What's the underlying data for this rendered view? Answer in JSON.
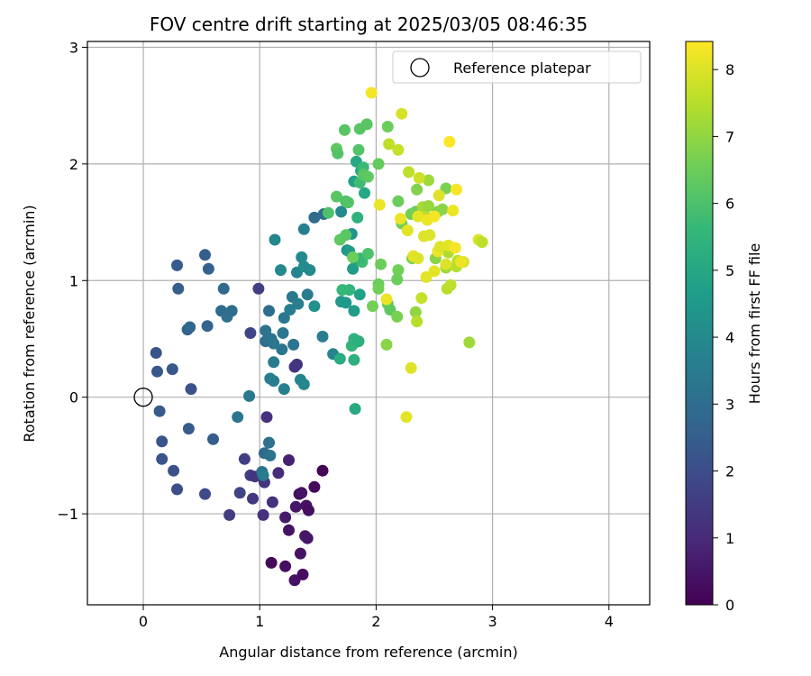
{
  "chart_data": {
    "type": "scatter",
    "title": "FOV centre drift starting at 2025/03/05 08:46:35",
    "xlabel": "Angular distance from reference (arcmin)",
    "ylabel": "Rotation from reference (arcmin)",
    "xlim": [
      -0.48,
      4.35
    ],
    "ylim": [
      -1.78,
      3.05
    ],
    "xticks": [
      0,
      1,
      2,
      3,
      4
    ],
    "yticks": [
      -1,
      0,
      1,
      2,
      3
    ],
    "grid": true,
    "legend": {
      "position": "top-right",
      "entries": [
        "Reference platepar"
      ]
    },
    "reference_point": {
      "x": 0,
      "y": 0,
      "label": "Reference platepar"
    },
    "colorbar": {
      "label": "Hours from first FF file",
      "range": [
        0,
        8.42
      ],
      "ticks": [
        0,
        1,
        2,
        3,
        4,
        5,
        6,
        7,
        8
      ],
      "colormap": [
        "#440154",
        "#482878",
        "#3e4989",
        "#31688e",
        "#26828e",
        "#1f9e89",
        "#35b779",
        "#6ece58",
        "#b5de2b",
        "#fde725"
      ]
    },
    "points": [
      {
        "x": 1.1,
        "y": -1.42,
        "c": 0.2
      },
      {
        "x": 1.22,
        "y": -1.45,
        "c": 0.3
      },
      {
        "x": 1.3,
        "y": -1.57,
        "c": 0.4
      },
      {
        "x": 1.37,
        "y": -1.52,
        "c": 0.3
      },
      {
        "x": 1.35,
        "y": -1.34,
        "c": 0.4
      },
      {
        "x": 1.39,
        "y": -1.19,
        "c": 0.5
      },
      {
        "x": 1.41,
        "y": -1.21,
        "c": 0.5
      },
      {
        "x": 1.25,
        "y": -1.14,
        "c": 0.4
      },
      {
        "x": 1.22,
        "y": -1.03,
        "c": 0.6
      },
      {
        "x": 1.31,
        "y": -0.94,
        "c": 0.5
      },
      {
        "x": 1.4,
        "y": -0.93,
        "c": 0.4
      },
      {
        "x": 1.42,
        "y": -0.97,
        "c": 0.3
      },
      {
        "x": 1.34,
        "y": -0.83,
        "c": 0.3
      },
      {
        "x": 1.36,
        "y": -0.82,
        "c": 0.4
      },
      {
        "x": 1.47,
        "y": -0.77,
        "c": 0.2
      },
      {
        "x": 1.54,
        "y": -0.63,
        "c": 0.1
      },
      {
        "x": 1.25,
        "y": -0.54,
        "c": 0.8
      },
      {
        "x": 1.16,
        "y": -0.65,
        "c": 1.0
      },
      {
        "x": 1.11,
        "y": -0.9,
        "c": 1.2
      },
      {
        "x": 1.04,
        "y": -0.73,
        "c": 1.3
      },
      {
        "x": 1.03,
        "y": -1.01,
        "c": 1.2
      },
      {
        "x": 0.94,
        "y": -0.87,
        "c": 1.4
      },
      {
        "x": 0.92,
        "y": -0.67,
        "c": 1.5
      },
      {
        "x": 0.96,
        "y": -0.68,
        "c": 1.3
      },
      {
        "x": 0.87,
        "y": -0.53,
        "c": 1.6
      },
      {
        "x": 0.83,
        "y": -0.82,
        "c": 1.7
      },
      {
        "x": 0.74,
        "y": -1.01,
        "c": 1.5
      },
      {
        "x": 0.53,
        "y": -0.83,
        "c": 1.9
      },
      {
        "x": 0.29,
        "y": -0.79,
        "c": 2.0
      },
      {
        "x": 0.26,
        "y": -0.63,
        "c": 2.1
      },
      {
        "x": 0.16,
        "y": -0.53,
        "c": 2.2
      },
      {
        "x": 0.16,
        "y": -0.38,
        "c": 2.2
      },
      {
        "x": 0.14,
        "y": -0.12,
        "c": 2.4
      },
      {
        "x": 0.12,
        "y": 0.22,
        "c": 2.3
      },
      {
        "x": 0.11,
        "y": 0.38,
        "c": 2.2
      },
      {
        "x": 0.25,
        "y": 0.24,
        "c": 2.3
      },
      {
        "x": 0.41,
        "y": 0.07,
        "c": 2.1
      },
      {
        "x": 0.39,
        "y": -0.27,
        "c": 2.4
      },
      {
        "x": 0.6,
        "y": -0.36,
        "c": 2.5
      },
      {
        "x": 1.06,
        "y": -0.17,
        "c": 1.2
      },
      {
        "x": 1.04,
        "y": -0.48,
        "c": 2.9
      },
      {
        "x": 1.08,
        "y": -0.39,
        "c": 3.1
      },
      {
        "x": 1.09,
        "y": -0.5,
        "c": 3.2
      },
      {
        "x": 1.02,
        "y": -0.64,
        "c": 3.3
      },
      {
        "x": 1.03,
        "y": -0.67,
        "c": 3.5
      },
      {
        "x": 0.81,
        "y": -0.17,
        "c": 3.3
      },
      {
        "x": 0.91,
        "y": 0.01,
        "c": 3.4
      },
      {
        "x": 0.92,
        "y": 0.55,
        "c": 1.8
      },
      {
        "x": 0.99,
        "y": 0.93,
        "c": 1.6
      },
      {
        "x": 0.38,
        "y": 0.58,
        "c": 2.6
      },
      {
        "x": 0.4,
        "y": 0.6,
        "c": 2.8
      },
      {
        "x": 0.55,
        "y": 0.61,
        "c": 2.7
      },
      {
        "x": 0.3,
        "y": 0.93,
        "c": 2.5
      },
      {
        "x": 0.29,
        "y": 1.13,
        "c": 2.4
      },
      {
        "x": 0.53,
        "y": 1.22,
        "c": 2.5
      },
      {
        "x": 0.56,
        "y": 1.1,
        "c": 2.6
      },
      {
        "x": 0.69,
        "y": 0.93,
        "c": 2.8
      },
      {
        "x": 0.67,
        "y": 0.74,
        "c": 3.0
      },
      {
        "x": 0.72,
        "y": 0.69,
        "c": 3.1
      },
      {
        "x": 0.76,
        "y": 0.74,
        "c": 3.0
      },
      {
        "x": 1.05,
        "y": 0.48,
        "c": 3.1
      },
      {
        "x": 1.08,
        "y": 0.74,
        "c": 3.0
      },
      {
        "x": 1.05,
        "y": 0.57,
        "c": 3.2
      },
      {
        "x": 1.1,
        "y": 0.5,
        "c": 3.2
      },
      {
        "x": 1.12,
        "y": 0.46,
        "c": 3.4
      },
      {
        "x": 1.12,
        "y": 0.3,
        "c": 3.5
      },
      {
        "x": 1.09,
        "y": 0.16,
        "c": 3.6
      },
      {
        "x": 1.12,
        "y": 0.14,
        "c": 3.6
      },
      {
        "x": 1.21,
        "y": 0.07,
        "c": 3.7
      },
      {
        "x": 1.19,
        "y": 0.41,
        "c": 3.3
      },
      {
        "x": 1.2,
        "y": 0.55,
        "c": 3.3
      },
      {
        "x": 1.21,
        "y": 0.68,
        "c": 3.4
      },
      {
        "x": 1.28,
        "y": 0.86,
        "c": 3.4
      },
      {
        "x": 1.26,
        "y": 0.75,
        "c": 3.6
      },
      {
        "x": 1.29,
        "y": 0.45,
        "c": 3.2
      },
      {
        "x": 1.3,
        "y": 0.26,
        "c": 1.3
      },
      {
        "x": 1.32,
        "y": 0.28,
        "c": 1.3
      },
      {
        "x": 1.35,
        "y": 0.15,
        "c": 3.8
      },
      {
        "x": 1.38,
        "y": 0.11,
        "c": 3.9
      },
      {
        "x": 1.18,
        "y": 1.09,
        "c": 4.0
      },
      {
        "x": 1.13,
        "y": 1.35,
        "c": 3.9
      },
      {
        "x": 1.33,
        "y": 0.8,
        "c": 3.6
      },
      {
        "x": 1.32,
        "y": 1.07,
        "c": 3.8
      },
      {
        "x": 1.36,
        "y": 1.2,
        "c": 4.0
      },
      {
        "x": 1.38,
        "y": 1.12,
        "c": 4.1
      },
      {
        "x": 1.41,
        "y": 0.88,
        "c": 3.5
      },
      {
        "x": 1.43,
        "y": 1.09,
        "c": 4.0
      },
      {
        "x": 1.47,
        "y": 0.78,
        "c": 4.2
      },
      {
        "x": 1.54,
        "y": 0.52,
        "c": 3.6
      },
      {
        "x": 1.63,
        "y": 0.37,
        "c": 3.8
      },
      {
        "x": 1.38,
        "y": 1.44,
        "c": 3.7
      },
      {
        "x": 1.47,
        "y": 1.54,
        "c": 2.9
      },
      {
        "x": 1.55,
        "y": 1.57,
        "c": 3.0
      },
      {
        "x": 1.7,
        "y": 1.59,
        "c": 4.0
      },
      {
        "x": 1.75,
        "y": 1.26,
        "c": 4.3
      },
      {
        "x": 1.79,
        "y": 1.4,
        "c": 4.4
      },
      {
        "x": 1.77,
        "y": 1.25,
        "c": 4.6
      },
      {
        "x": 1.8,
        "y": 1.1,
        "c": 4.6
      },
      {
        "x": 1.83,
        "y": 1.17,
        "c": 4.8
      },
      {
        "x": 1.7,
        "y": 0.82,
        "c": 4.5
      },
      {
        "x": 1.74,
        "y": 0.81,
        "c": 4.5
      },
      {
        "x": 1.81,
        "y": 0.74,
        "c": 4.6
      },
      {
        "x": 1.77,
        "y": 0.92,
        "c": 5.5
      },
      {
        "x": 1.71,
        "y": 0.92,
        "c": 5.6
      },
      {
        "x": 1.86,
        "y": 0.88,
        "c": 4.8
      },
      {
        "x": 1.79,
        "y": 0.44,
        "c": 5.5
      },
      {
        "x": 1.82,
        "y": 0.47,
        "c": 5.5
      },
      {
        "x": 1.81,
        "y": 0.5,
        "c": 5.4
      },
      {
        "x": 1.85,
        "y": 0.48,
        "c": 5.3
      },
      {
        "x": 1.81,
        "y": 0.32,
        "c": 5.3
      },
      {
        "x": 1.69,
        "y": 0.33,
        "c": 5.2
      },
      {
        "x": 1.82,
        "y": -0.1,
        "c": 5.1
      },
      {
        "x": 1.81,
        "y": 1.85,
        "c": 4.8
      },
      {
        "x": 1.87,
        "y": 1.94,
        "c": 4.9
      },
      {
        "x": 1.83,
        "y": 2.02,
        "c": 5.0
      },
      {
        "x": 1.84,
        "y": 1.54,
        "c": 5.4
      },
      {
        "x": 1.86,
        "y": 1.84,
        "c": 5.8
      },
      {
        "x": 1.89,
        "y": 1.97,
        "c": 5.7
      },
      {
        "x": 1.9,
        "y": 1.75,
        "c": 5.0
      },
      {
        "x": 1.88,
        "y": 1.16,
        "c": 5.8
      },
      {
        "x": 1.86,
        "y": 1.19,
        "c": 5.6
      },
      {
        "x": 1.93,
        "y": 1.23,
        "c": 6.0
      },
      {
        "x": 1.85,
        "y": 2.12,
        "c": 6.1
      },
      {
        "x": 1.86,
        "y": 2.3,
        "c": 6.2
      },
      {
        "x": 1.92,
        "y": 2.34,
        "c": 6.2
      },
      {
        "x": 1.73,
        "y": 2.29,
        "c": 6.2
      },
      {
        "x": 1.66,
        "y": 2.13,
        "c": 6.3
      },
      {
        "x": 1.67,
        "y": 2.09,
        "c": 6.1
      },
      {
        "x": 1.66,
        "y": 1.72,
        "c": 6.2
      },
      {
        "x": 1.74,
        "y": 1.68,
        "c": 6.0
      },
      {
        "x": 1.76,
        "y": 1.67,
        "c": 6.1
      },
      {
        "x": 1.59,
        "y": 1.58,
        "c": 6.0
      },
      {
        "x": 1.89,
        "y": 1.91,
        "c": 6.2
      },
      {
        "x": 1.93,
        "y": 1.89,
        "c": 6.3
      },
      {
        "x": 2.02,
        "y": 2.0,
        "c": 6.4
      },
      {
        "x": 2.1,
        "y": 2.32,
        "c": 6.5
      },
      {
        "x": 1.69,
        "y": 1.35,
        "c": 6.3
      },
      {
        "x": 1.74,
        "y": 1.39,
        "c": 6.2
      },
      {
        "x": 1.8,
        "y": 1.2,
        "c": 6.5
      },
      {
        "x": 1.97,
        "y": 0.78,
        "c": 6.6
      },
      {
        "x": 2.02,
        "y": 0.97,
        "c": 6.5
      },
      {
        "x": 2.02,
        "y": 0.93,
        "c": 6.6
      },
      {
        "x": 2.04,
        "y": 1.14,
        "c": 6.5
      },
      {
        "x": 2.1,
        "y": 0.8,
        "c": 6.4
      },
      {
        "x": 2.12,
        "y": 0.75,
        "c": 6.3
      },
      {
        "x": 2.18,
        "y": 0.69,
        "c": 6.7
      },
      {
        "x": 2.19,
        "y": 1.09,
        "c": 6.6
      },
      {
        "x": 2.18,
        "y": 1.01,
        "c": 6.5
      },
      {
        "x": 2.22,
        "y": 1.49,
        "c": 6.6
      },
      {
        "x": 2.19,
        "y": 1.68,
        "c": 6.5
      },
      {
        "x": 2.31,
        "y": 1.19,
        "c": 6.7
      },
      {
        "x": 2.34,
        "y": 1.59,
        "c": 6.4
      },
      {
        "x": 2.3,
        "y": 1.57,
        "c": 6.6
      },
      {
        "x": 2.35,
        "y": 1.78,
        "c": 6.8
      },
      {
        "x": 2.4,
        "y": 1.63,
        "c": 7.3
      },
      {
        "x": 2.42,
        "y": 1.55,
        "c": 7.5
      },
      {
        "x": 2.45,
        "y": 1.64,
        "c": 7.1
      },
      {
        "x": 2.45,
        "y": 1.86,
        "c": 7.2
      },
      {
        "x": 2.51,
        "y": 1.19,
        "c": 6.9
      },
      {
        "x": 2.53,
        "y": 1.59,
        "c": 6.8
      },
      {
        "x": 2.57,
        "y": 1.61,
        "c": 6.9
      },
      {
        "x": 2.6,
        "y": 1.79,
        "c": 6.7
      },
      {
        "x": 2.61,
        "y": 0.93,
        "c": 7.5
      },
      {
        "x": 2.6,
        "y": 1.11,
        "c": 7.2
      },
      {
        "x": 2.64,
        "y": 0.96,
        "c": 7.6
      },
      {
        "x": 2.62,
        "y": 1.24,
        "c": 7.4
      },
      {
        "x": 2.69,
        "y": 1.12,
        "c": 7.5
      },
      {
        "x": 2.7,
        "y": 1.17,
        "c": 7.6
      },
      {
        "x": 2.75,
        "y": 1.16,
        "c": 7.9
      },
      {
        "x": 2.8,
        "y": 0.47,
        "c": 7.2
      },
      {
        "x": 2.34,
        "y": 0.73,
        "c": 7.0
      },
      {
        "x": 2.09,
        "y": 0.45,
        "c": 6.9
      },
      {
        "x": 2.35,
        "y": 0.65,
        "c": 7.5
      },
      {
        "x": 2.39,
        "y": 0.85,
        "c": 7.7
      },
      {
        "x": 2.28,
        "y": 1.93,
        "c": 7.6
      },
      {
        "x": 2.37,
        "y": 1.88,
        "c": 7.8
      },
      {
        "x": 2.19,
        "y": 2.12,
        "c": 7.7
      },
      {
        "x": 2.11,
        "y": 2.17,
        "c": 7.6
      },
      {
        "x": 2.22,
        "y": 2.43,
        "c": 7.9
      },
      {
        "x": 2.09,
        "y": 0.84,
        "c": 8.2
      },
      {
        "x": 1.96,
        "y": 2.61,
        "c": 8.3
      },
      {
        "x": 2.03,
        "y": 1.65,
        "c": 8.2
      },
      {
        "x": 2.21,
        "y": 1.53,
        "c": 8.2
      },
      {
        "x": 2.27,
        "y": 1.43,
        "c": 8.1
      },
      {
        "x": 2.32,
        "y": 1.21,
        "c": 8.1
      },
      {
        "x": 2.36,
        "y": 1.19,
        "c": 8.0
      },
      {
        "x": 2.41,
        "y": 1.38,
        "c": 8.0
      },
      {
        "x": 2.36,
        "y": 1.55,
        "c": 8.1
      },
      {
        "x": 2.43,
        "y": 1.03,
        "c": 8.1
      },
      {
        "x": 2.44,
        "y": 1.52,
        "c": 8.2
      },
      {
        "x": 2.46,
        "y": 1.39,
        "c": 8.0
      },
      {
        "x": 2.5,
        "y": 1.55,
        "c": 8.3
      },
      {
        "x": 2.5,
        "y": 1.08,
        "c": 8.1
      },
      {
        "x": 2.53,
        "y": 1.25,
        "c": 8.2
      },
      {
        "x": 2.55,
        "y": 1.29,
        "c": 8.0
      },
      {
        "x": 2.54,
        "y": 1.73,
        "c": 8.0
      },
      {
        "x": 2.6,
        "y": 1.14,
        "c": 8.0
      },
      {
        "x": 2.62,
        "y": 1.3,
        "c": 8.1
      },
      {
        "x": 2.63,
        "y": 2.19,
        "c": 8.4
      },
      {
        "x": 2.66,
        "y": 1.6,
        "c": 8.2
      },
      {
        "x": 2.68,
        "y": 1.28,
        "c": 8.3
      },
      {
        "x": 2.69,
        "y": 1.78,
        "c": 8.3
      },
      {
        "x": 2.73,
        "y": 1.16,
        "c": 8.2
      },
      {
        "x": 2.88,
        "y": 1.35,
        "c": 8.0
      },
      {
        "x": 2.91,
        "y": 1.33,
        "c": 7.6
      },
      {
        "x": 2.26,
        "y": -0.17,
        "c": 8.1
      },
      {
        "x": 2.3,
        "y": 0.25,
        "c": 8.0
      }
    ]
  }
}
